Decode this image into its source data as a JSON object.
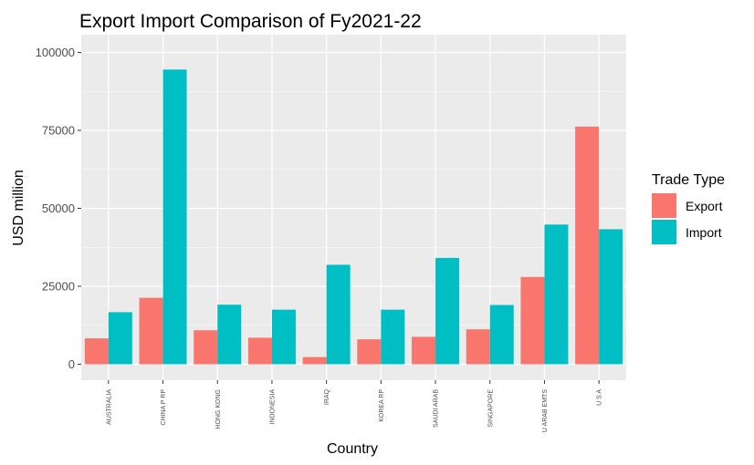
{
  "chart_data": {
    "type": "bar",
    "title": "Export Import Comparison of Fy2021-22",
    "xlabel": "Country",
    "ylabel": "USD million",
    "ylim": [
      0,
      100000
    ],
    "yticks": [
      0,
      25000,
      50000,
      75000,
      100000
    ],
    "ytick_labels": [
      "0",
      "25000",
      "50000",
      "75000",
      "100000"
    ],
    "categories": [
      "AUSTRALIA",
      "CHINA P RP",
      "HONG KONG",
      "INDONESIA",
      "IRAQ",
      "KOREA RP",
      "SAUDI ARAB",
      "SINGAPORE",
      "U ARAB EMTS",
      "U S A"
    ],
    "series": [
      {
        "name": "Export",
        "color": "#F8766D",
        "values": [
          8300,
          21300,
          10900,
          8500,
          2300,
          8000,
          8800,
          11200,
          28000,
          76200
        ]
      },
      {
        "name": "Import",
        "color": "#00BFC4",
        "values": [
          16700,
          94500,
          19100,
          17500,
          31900,
          17500,
          34100,
          19000,
          44800,
          43300
        ]
      }
    ],
    "legend": {
      "title": "Trade Type",
      "position": "right"
    },
    "grid": true,
    "panel_background": "#EBEBEB",
    "gridline_color": "#FFFFFF"
  }
}
